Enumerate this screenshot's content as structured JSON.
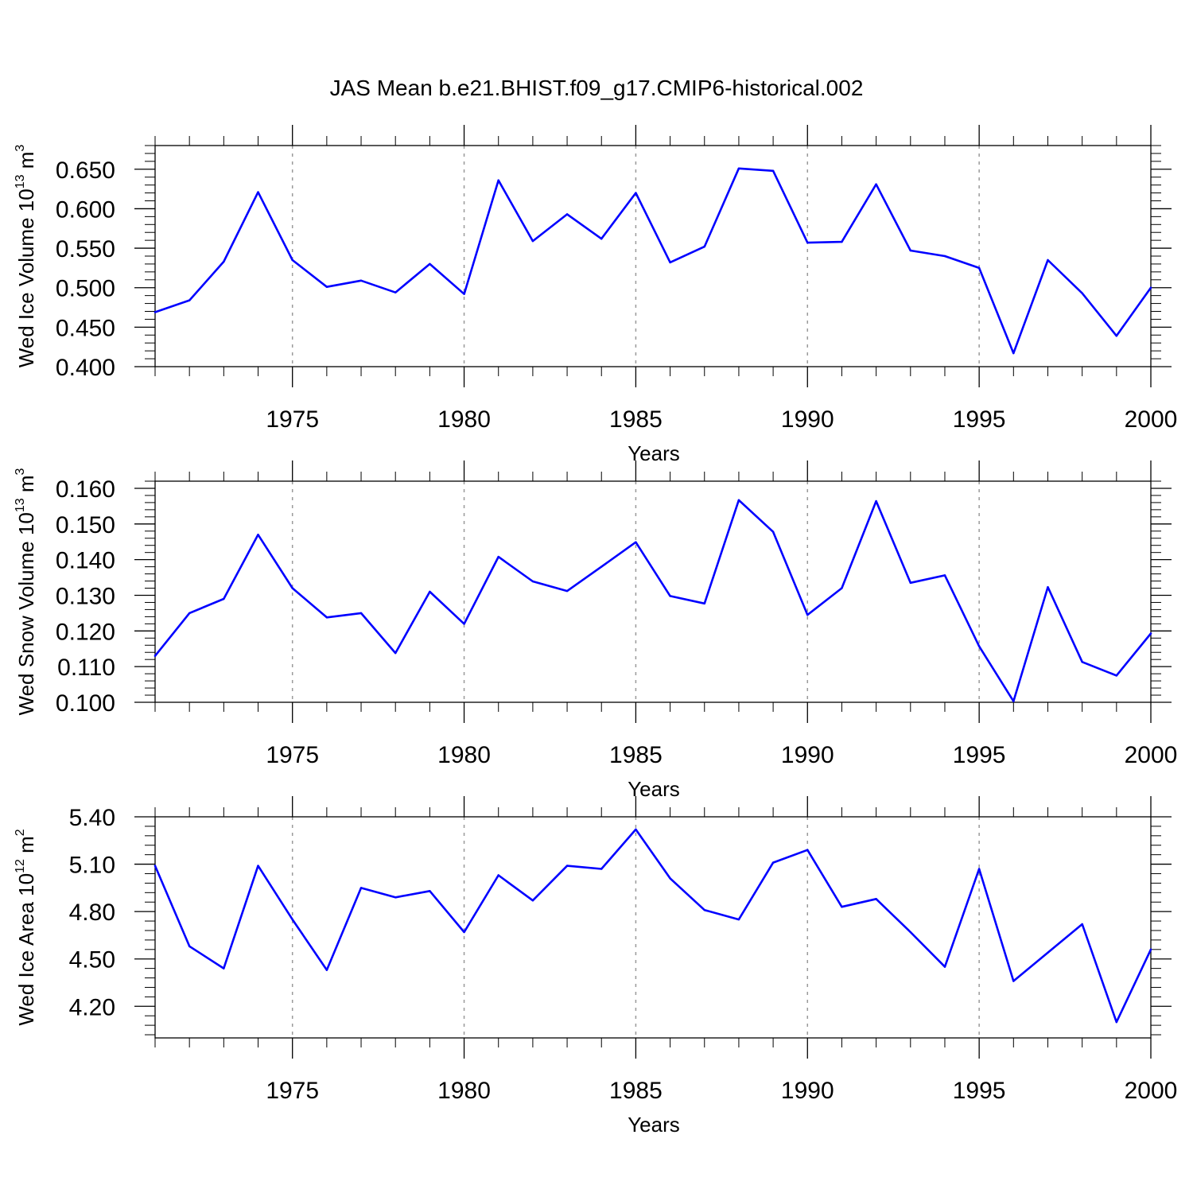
{
  "title": "JAS Mean b.e21.BHIST.f09_g17.CMIP6-historical.002",
  "line_color": "#0000ff",
  "chart_data": [
    {
      "type": "line",
      "title": "JAS Mean b.e21.BHIST.f09_g17.CMIP6-historical.002",
      "xlabel": "Years",
      "ylabel": "Wed Ice Volume 10",
      "ylabel_exp": "13",
      "ylabel_unit": " m",
      "ylabel_unit_exp": "3",
      "xlim": [
        1971,
        2000
      ],
      "ylim": [
        0.4,
        0.68
      ],
      "yticks": [
        0.4,
        0.45,
        0.5,
        0.55,
        0.6,
        0.65
      ],
      "ytick_labels": [
        "0.400",
        "0.450",
        "0.500",
        "0.550",
        "0.600",
        "0.650"
      ],
      "xticks": [
        1975,
        1980,
        1985,
        1990,
        1995,
        2000
      ],
      "xtick_labels": [
        "1975",
        "1980",
        "1985",
        "1990",
        "1995",
        "2000"
      ],
      "grid": "vertical dashed at labeled years",
      "x": [
        1971,
        1972,
        1973,
        1974,
        1975,
        1976,
        1977,
        1978,
        1979,
        1980,
        1981,
        1982,
        1983,
        1984,
        1985,
        1986,
        1987,
        1988,
        1989,
        1990,
        1991,
        1992,
        1993,
        1994,
        1995,
        1996,
        1997,
        1998,
        1999,
        2000
      ],
      "series": [
        {
          "values": [
            0.469,
            0.484,
            0.533,
            0.621,
            0.535,
            0.501,
            0.509,
            0.494,
            0.53,
            0.492,
            0.636,
            0.559,
            0.593,
            0.562,
            0.62,
            0.532,
            0.552,
            0.651,
            0.648,
            0.557,
            0.558,
            0.631,
            0.547,
            0.54,
            0.525,
            0.417,
            0.535,
            0.493,
            0.439,
            0.5
          ]
        }
      ]
    },
    {
      "type": "line",
      "xlabel": "Years",
      "ylabel": "Wed Snow Volume 10",
      "ylabel_exp": "13",
      "ylabel_unit": " m",
      "ylabel_unit_exp": "3",
      "xlim": [
        1971,
        2000
      ],
      "ylim": [
        0.1,
        0.162
      ],
      "yticks": [
        0.1,
        0.11,
        0.12,
        0.13,
        0.14,
        0.15,
        0.16
      ],
      "ytick_labels": [
        "0.100",
        "0.110",
        "0.120",
        "0.130",
        "0.140",
        "0.150",
        "0.160"
      ],
      "xticks": [
        1975,
        1980,
        1985,
        1990,
        1995,
        2000
      ],
      "xtick_labels": [
        "1975",
        "1980",
        "1985",
        "1990",
        "1995",
        "2000"
      ],
      "grid": "vertical dashed at labeled years",
      "x": [
        1971,
        1972,
        1973,
        1974,
        1975,
        1976,
        1977,
        1978,
        1979,
        1980,
        1981,
        1982,
        1983,
        1984,
        1985,
        1986,
        1987,
        1988,
        1989,
        1990,
        1991,
        1992,
        1993,
        1994,
        1995,
        1996,
        1997,
        1998,
        1999,
        2000
      ],
      "series": [
        {
          "values": [
            0.113,
            0.125,
            0.129,
            0.147,
            0.132,
            0.1238,
            0.125,
            0.1138,
            0.131,
            0.122,
            0.1408,
            0.1339,
            0.1312,
            0.138,
            0.1449,
            0.1298,
            0.1277,
            0.1567,
            0.1478,
            0.1245,
            0.132,
            0.1564,
            0.1335,
            0.1356,
            0.1157,
            0.1003,
            0.1323,
            0.1113,
            0.1075,
            0.1193
          ]
        }
      ]
    },
    {
      "type": "line",
      "xlabel": "Years",
      "ylabel": "Wed Ice Area 10",
      "ylabel_exp": "12",
      "ylabel_unit": " m",
      "ylabel_unit_exp": "2",
      "xlim": [
        1971,
        2000
      ],
      "ylim": [
        4.0,
        5.4
      ],
      "yticks": [
        4.2,
        4.5,
        4.8,
        5.1,
        5.4
      ],
      "ytick_labels": [
        "4.20",
        "4.50",
        "4.80",
        "5.10",
        "5.40"
      ],
      "xticks": [
        1975,
        1980,
        1985,
        1990,
        1995,
        2000
      ],
      "xtick_labels": [
        "1975",
        "1980",
        "1985",
        "1990",
        "1995",
        "2000"
      ],
      "grid": "vertical dashed at labeled years",
      "x": [
        1971,
        1972,
        1973,
        1974,
        1975,
        1976,
        1977,
        1978,
        1979,
        1980,
        1981,
        1982,
        1983,
        1984,
        1985,
        1986,
        1987,
        1988,
        1989,
        1990,
        1991,
        1992,
        1993,
        1994,
        1995,
        1996,
        1997,
        1998,
        1999,
        2000
      ],
      "series": [
        {
          "values": [
            5.09,
            4.58,
            4.44,
            5.09,
            4.75,
            4.43,
            4.95,
            4.89,
            4.93,
            4.67,
            5.03,
            4.87,
            5.09,
            5.07,
            5.32,
            5.01,
            4.81,
            4.75,
            5.11,
            5.19,
            4.83,
            4.88,
            4.67,
            4.45,
            5.07,
            4.36,
            4.54,
            4.72,
            4.1,
            4.56
          ]
        }
      ]
    }
  ]
}
